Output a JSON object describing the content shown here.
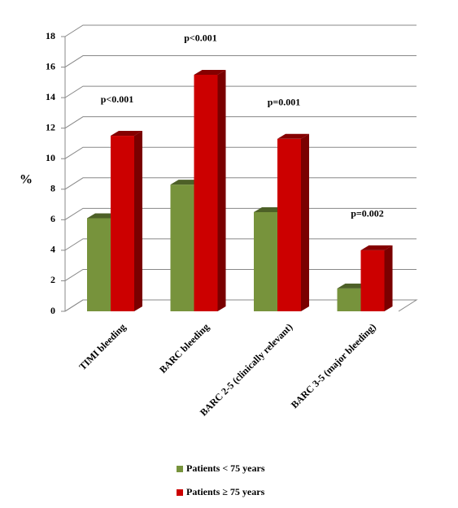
{
  "chart_data": {
    "type": "bar3d",
    "y_label": "%",
    "categories": [
      "TIMI bleeding",
      "BARC bleeding",
      "BARC 2-5 (clinically relevant)",
      "BARC 3-5 (major bleeding)"
    ],
    "series": [
      {
        "name": "Patients < 75 years",
        "color": "#77933c",
        "values": [
          6.1,
          8.3,
          6.5,
          1.5
        ]
      },
      {
        "name": "Patients ≥ 75 years",
        "color": "#cc0000",
        "values": [
          11.5,
          15.5,
          11.3,
          4.0
        ]
      }
    ],
    "annotations": [
      "p<0.001",
      "p<0.001",
      "p=0.001",
      "p=0.002"
    ],
    "ylim": [
      0,
      18
    ],
    "yticks": [
      0,
      2,
      4,
      6,
      8,
      10,
      12,
      14,
      16,
      18
    ],
    "grid": true
  }
}
